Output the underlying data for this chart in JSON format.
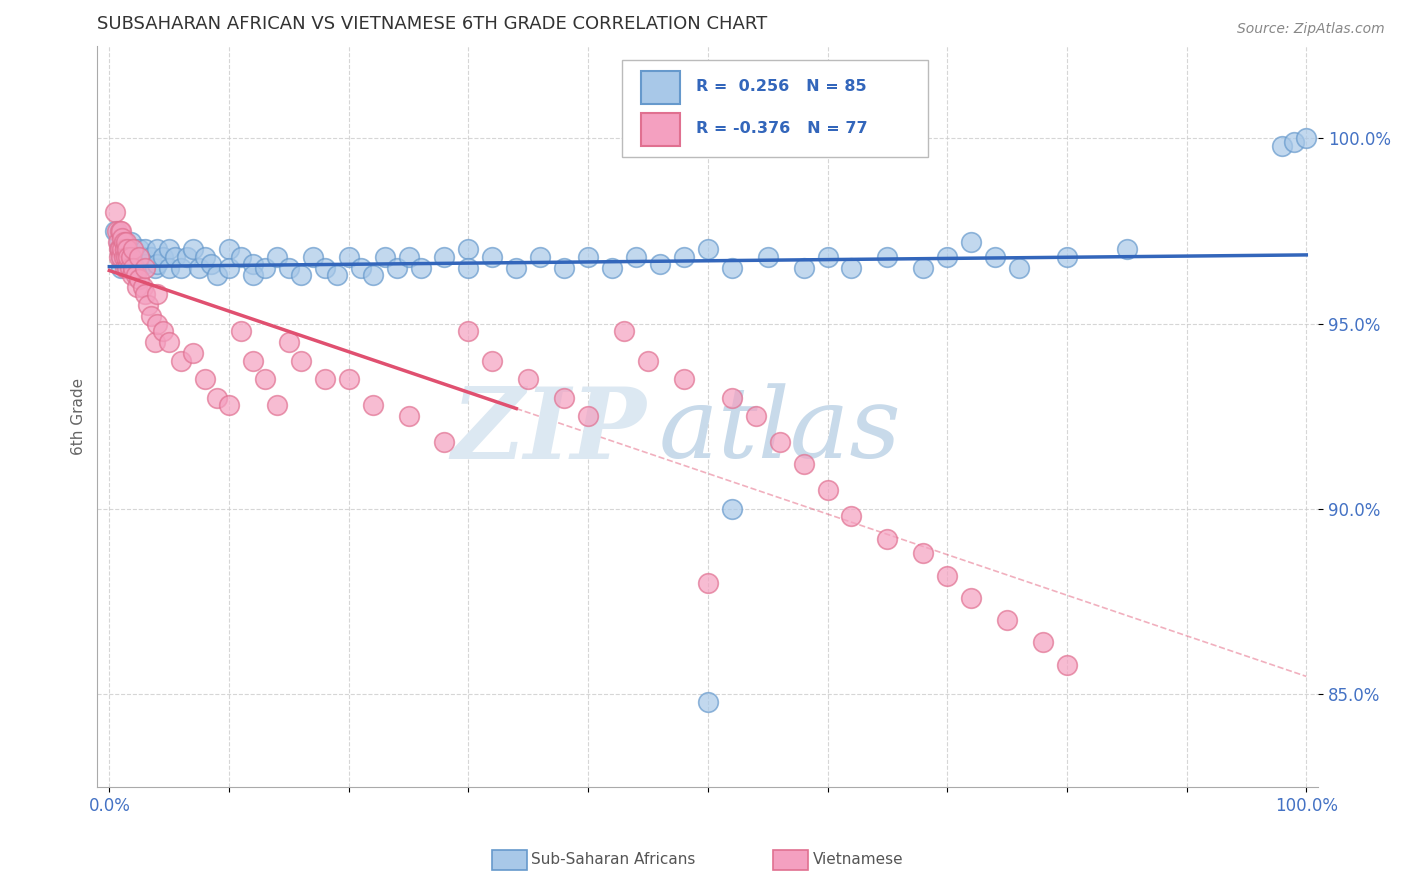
{
  "title": "SUBSAHARAN AFRICAN VS VIETNAMESE 6TH GRADE CORRELATION CHART",
  "source": "Source: ZipAtlas.com",
  "ylabel": "6th Grade",
  "xlim": [
    0.0,
    1.0
  ],
  "ylim": [
    0.825,
    1.025
  ],
  "ytick_values": [
    0.85,
    0.9,
    0.95,
    1.0
  ],
  "ytick_labels": [
    "85.0%",
    "90.0%",
    "95.0%",
    "100.0%"
  ],
  "blue_color": "#a8c8e8",
  "blue_edge_color": "#6699cc",
  "blue_line_color": "#3366bb",
  "pink_color": "#f4a0c0",
  "pink_edge_color": "#e07090",
  "pink_line_color": "#e05070",
  "title_color": "#333333",
  "tick_color": "#4472c4",
  "watermark_color": "#d8e4f0",
  "legend_R_blue": "R =  0.256",
  "legend_N_blue": "N = 85",
  "legend_R_pink": "R = -0.376",
  "legend_N_pink": "N = 77",
  "blue_scatter_x": [
    0.005,
    0.008,
    0.009,
    0.01,
    0.01,
    0.012,
    0.013,
    0.015,
    0.015,
    0.016,
    0.018,
    0.018,
    0.02,
    0.02,
    0.022,
    0.025,
    0.025,
    0.028,
    0.03,
    0.03,
    0.035,
    0.038,
    0.04,
    0.04,
    0.045,
    0.05,
    0.05,
    0.055,
    0.06,
    0.065,
    0.07,
    0.075,
    0.08,
    0.085,
    0.09,
    0.1,
    0.1,
    0.11,
    0.12,
    0.12,
    0.13,
    0.14,
    0.15,
    0.16,
    0.17,
    0.18,
    0.19,
    0.2,
    0.21,
    0.22,
    0.23,
    0.24,
    0.25,
    0.26,
    0.28,
    0.3,
    0.3,
    0.32,
    0.34,
    0.36,
    0.38,
    0.4,
    0.42,
    0.44,
    0.46,
    0.48,
    0.5,
    0.52,
    0.55,
    0.58,
    0.6,
    0.62,
    0.65,
    0.68,
    0.7,
    0.72,
    0.74,
    0.76,
    0.8,
    0.85,
    0.5,
    0.52,
    0.98,
    0.99,
    1.0
  ],
  "blue_scatter_y": [
    0.975,
    0.972,
    0.97,
    0.968,
    0.965,
    0.972,
    0.97,
    0.968,
    0.965,
    0.97,
    0.972,
    0.968,
    0.97,
    0.965,
    0.968,
    0.97,
    0.965,
    0.968,
    0.97,
    0.966,
    0.968,
    0.965,
    0.97,
    0.966,
    0.968,
    0.97,
    0.965,
    0.968,
    0.965,
    0.968,
    0.97,
    0.965,
    0.968,
    0.966,
    0.963,
    0.97,
    0.965,
    0.968,
    0.966,
    0.963,
    0.965,
    0.968,
    0.965,
    0.963,
    0.968,
    0.965,
    0.963,
    0.968,
    0.965,
    0.963,
    0.968,
    0.965,
    0.968,
    0.965,
    0.968,
    0.97,
    0.965,
    0.968,
    0.965,
    0.968,
    0.965,
    0.968,
    0.965,
    0.968,
    0.966,
    0.968,
    0.97,
    0.965,
    0.968,
    0.965,
    0.968,
    0.965,
    0.968,
    0.965,
    0.968,
    0.972,
    0.968,
    0.965,
    0.968,
    0.97,
    0.848,
    0.9,
    0.998,
    0.999,
    1.0
  ],
  "pink_scatter_x": [
    0.005,
    0.006,
    0.007,
    0.008,
    0.008,
    0.009,
    0.009,
    0.01,
    0.01,
    0.011,
    0.011,
    0.012,
    0.012,
    0.013,
    0.013,
    0.014,
    0.014,
    0.015,
    0.015,
    0.016,
    0.017,
    0.018,
    0.019,
    0.02,
    0.02,
    0.022,
    0.023,
    0.025,
    0.025,
    0.028,
    0.03,
    0.03,
    0.032,
    0.035,
    0.038,
    0.04,
    0.04,
    0.045,
    0.05,
    0.06,
    0.07,
    0.08,
    0.09,
    0.1,
    0.11,
    0.12,
    0.13,
    0.14,
    0.15,
    0.16,
    0.18,
    0.2,
    0.22,
    0.25,
    0.28,
    0.3,
    0.32,
    0.35,
    0.38,
    0.4,
    0.43,
    0.45,
    0.48,
    0.5,
    0.52,
    0.54,
    0.56,
    0.58,
    0.6,
    0.62,
    0.65,
    0.68,
    0.7,
    0.72,
    0.75,
    0.78,
    0.8
  ],
  "pink_scatter_y": [
    0.98,
    0.975,
    0.972,
    0.97,
    0.968,
    0.975,
    0.97,
    0.975,
    0.968,
    0.973,
    0.97,
    0.972,
    0.968,
    0.97,
    0.965,
    0.972,
    0.968,
    0.97,
    0.965,
    0.968,
    0.965,
    0.968,
    0.963,
    0.97,
    0.965,
    0.963,
    0.96,
    0.968,
    0.962,
    0.96,
    0.965,
    0.958,
    0.955,
    0.952,
    0.945,
    0.958,
    0.95,
    0.948,
    0.945,
    0.94,
    0.942,
    0.935,
    0.93,
    0.928,
    0.948,
    0.94,
    0.935,
    0.928,
    0.945,
    0.94,
    0.935,
    0.935,
    0.928,
    0.925,
    0.918,
    0.948,
    0.94,
    0.935,
    0.93,
    0.925,
    0.948,
    0.94,
    0.935,
    0.88,
    0.93,
    0.925,
    0.918,
    0.912,
    0.905,
    0.898,
    0.892,
    0.888,
    0.882,
    0.876,
    0.87,
    0.864,
    0.858
  ]
}
